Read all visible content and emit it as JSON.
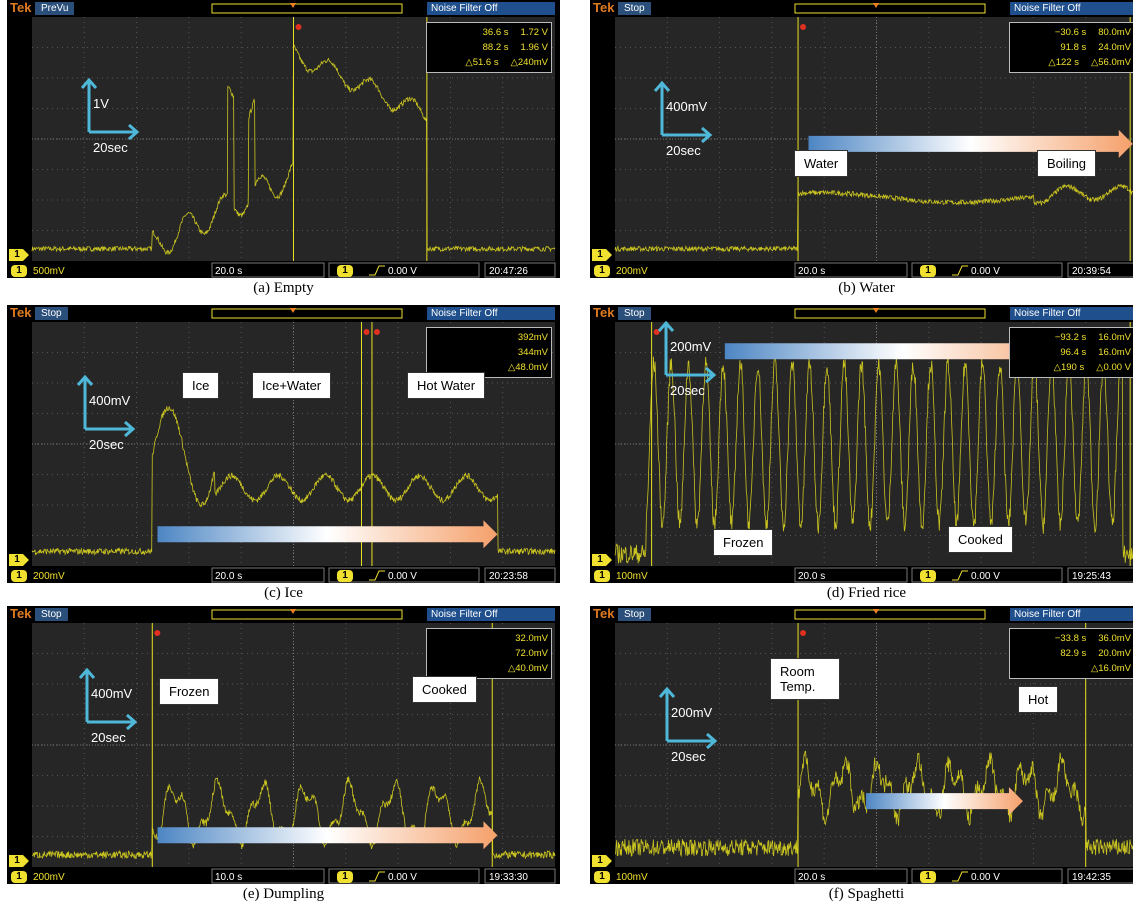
{
  "panels": [
    {
      "brand": "Tek",
      "mode": "PreVu",
      "filter": "Noise Filter Off",
      "readout": [
        [
          "36.6 s",
          "1.72 V"
        ],
        [
          "88.2 s",
          "1.96 V"
        ],
        [
          "△51.6 s",
          "△240mV"
        ]
      ],
      "scale_v": "1V",
      "scale_t": "20sec",
      "labels": [],
      "channel": "1",
      "volts_div": "500mV",
      "time_div": "20.0 s",
      "trigger_level": "0.00 V",
      "clock": "20:47:26",
      "caption": "(a) Empty"
    },
    {
      "brand": "Tek",
      "mode": "Stop",
      "filter": "Noise Filter Off",
      "readout": [
        [
          "−30.6 s",
          "80.0mV"
        ],
        [
          "91.8 s",
          "24.0mV"
        ],
        [
          "△122 s",
          "△56.0mV"
        ]
      ],
      "scale_v": "400mV",
      "scale_t": "20sec",
      "labels": [
        "Water",
        "Boiling"
      ],
      "channel": "1",
      "volts_div": "200mV",
      "time_div": "20.0 s",
      "trigger_level": "0.00 V",
      "clock": "20:39:54",
      "caption": "(b) Water"
    },
    {
      "brand": "Tek",
      "mode": "Stop",
      "filter": "Noise Filter Off",
      "readout": [
        [
          "392mV"
        ],
        [
          "344mV"
        ],
        [
          "△48.0mV"
        ]
      ],
      "scale_v": "400mV",
      "scale_t": "20sec",
      "labels": [
        "Ice",
        "Ice+Water",
        "Hot Water"
      ],
      "channel": "1",
      "volts_div": "200mV",
      "time_div": "20.0 s",
      "trigger_level": "0.00 V",
      "clock": "20:23:58",
      "caption": "(c) Ice"
    },
    {
      "brand": "Tek",
      "mode": "Stop",
      "filter": "Noise Filter Off",
      "readout": [
        [
          "−93.2 s",
          "16.0mV"
        ],
        [
          "96.4 s",
          "16.0mV"
        ],
        [
          "△190 s",
          "△0.00 V"
        ]
      ],
      "scale_v": "200mV",
      "scale_t": "20sec",
      "labels": [
        "Frozen",
        "Cooked"
      ],
      "channel": "1",
      "volts_div": "100mV",
      "time_div": "20.0 s",
      "trigger_level": "0.00 V",
      "clock": "19:25:43",
      "caption": "(d) Fried rice"
    },
    {
      "brand": "Tek",
      "mode": "Stop",
      "filter": "Noise Filter Off",
      "readout": [
        [
          "32.0mV"
        ],
        [
          "72.0mV"
        ],
        [
          "△40.0mV"
        ]
      ],
      "scale_v": "400mV",
      "scale_t": "20sec",
      "labels": [
        "Frozen",
        "Cooked"
      ],
      "channel": "1",
      "volts_div": "200mV",
      "time_div": "10.0 s",
      "trigger_level": "0.00 V",
      "clock": "19:33:30",
      "caption": "(e) Dumpling"
    },
    {
      "brand": "Tek",
      "mode": "Stop",
      "filter": "Noise Filter Off",
      "readout": [
        [
          "−33.8 s",
          "36.0mV"
        ],
        [
          "82.9 s",
          "20.0mV"
        ],
        [
          "△16.0mV"
        ]
      ],
      "scale_v": "200mV",
      "scale_t": "20sec",
      "labels": [
        "Room Temp.",
        "Hot"
      ],
      "channel": "1",
      "volts_div": "100mV",
      "time_div": "20.0 s",
      "trigger_level": "0.00 V",
      "clock": "19:42:35",
      "caption": "(f) Spaghetti"
    }
  ]
}
